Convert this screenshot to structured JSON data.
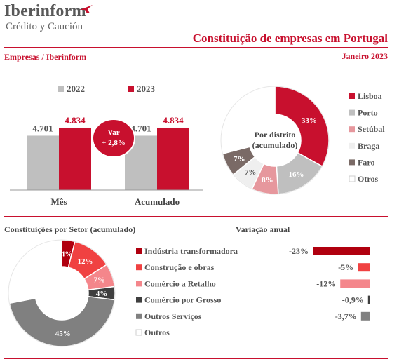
{
  "brand": {
    "name": "Iberinform",
    "tagline": "Crédito y Caución"
  },
  "header": {
    "title": "Constituição de empresas em Portugal",
    "source": "Empresas / Iberinform",
    "period": "Janeiro 2023"
  },
  "colors": {
    "accent": "#c8102e",
    "grey_light": "#bfbfbf",
    "pink": "#e6979d",
    "very_light": "#f2f2f2",
    "brown_grey": "#7f7f7f"
  },
  "chart_data": [
    {
      "type": "bar",
      "categories": [
        "Mês",
        "Acumulado"
      ],
      "series": [
        {
          "name": "2022",
          "values": [
            4701,
            4701
          ],
          "labels": [
            "4.701",
            "4.701"
          ],
          "color": "#bfbfbf"
        },
        {
          "name": "2023",
          "values": [
            4834,
            4834
          ],
          "labels": [
            "4.834",
            "4.834"
          ],
          "color": "#c8102e"
        }
      ],
      "ylim": [
        3800,
        4950
      ],
      "annotation": {
        "line1": "Var",
        "line2": "+ 2,8%"
      },
      "legend": "top"
    },
    {
      "type": "pie",
      "title": "Por distrito (acumulado)",
      "title_lines": [
        "Por distrito",
        "(acumulado)"
      ],
      "labels": [
        "Lisboa",
        "Porto",
        "Setúbal",
        "Braga",
        "Faro",
        "Otros"
      ],
      "values": [
        33,
        16,
        8,
        7,
        7,
        29
      ],
      "value_labels": [
        "33%",
        "16%",
        "8%",
        "7%",
        "7%",
        ""
      ],
      "colors": [
        "#c8102e",
        "#bfbfbf",
        "#e6979d",
        "#efefef",
        "#7a6a66",
        "#ffffff"
      ],
      "legend": "right"
    },
    {
      "type": "pie",
      "title": "Constituições por Setor (acumulado)",
      "labels": [
        "Indústria transformadora",
        "Construção e obras",
        "Comércio a Retalho",
        "Comércio por Grosso",
        "Outros Serviços",
        "Outros"
      ],
      "values": [
        4,
        12,
        7,
        4,
        45,
        28
      ],
      "value_labels": [
        "4%",
        "12%",
        "7%",
        "4%",
        "45%",
        ""
      ],
      "colors": [
        "#b0000f",
        "#f04141",
        "#f4868b",
        "#3f3f3f",
        "#808080",
        "#ffffff"
      ],
      "legend": "right"
    },
    {
      "type": "bar",
      "title": "Variação anual",
      "categories": [
        "Indústria transformadora",
        "Construção e obras",
        "Comércio a Retalho",
        "Comércio por Grosso",
        "Outros Serviços"
      ],
      "values": [
        -23,
        -5,
        -12,
        -0.9,
        -3.7
      ],
      "value_labels": [
        "-23%",
        "-5%",
        "-12%",
        "-0,9%",
        "-3,7%"
      ],
      "colors": [
        "#b0000f",
        "#f04141",
        "#f4868b",
        "#3f3f3f",
        "#808080"
      ],
      "orientation": "horizontal"
    }
  ]
}
